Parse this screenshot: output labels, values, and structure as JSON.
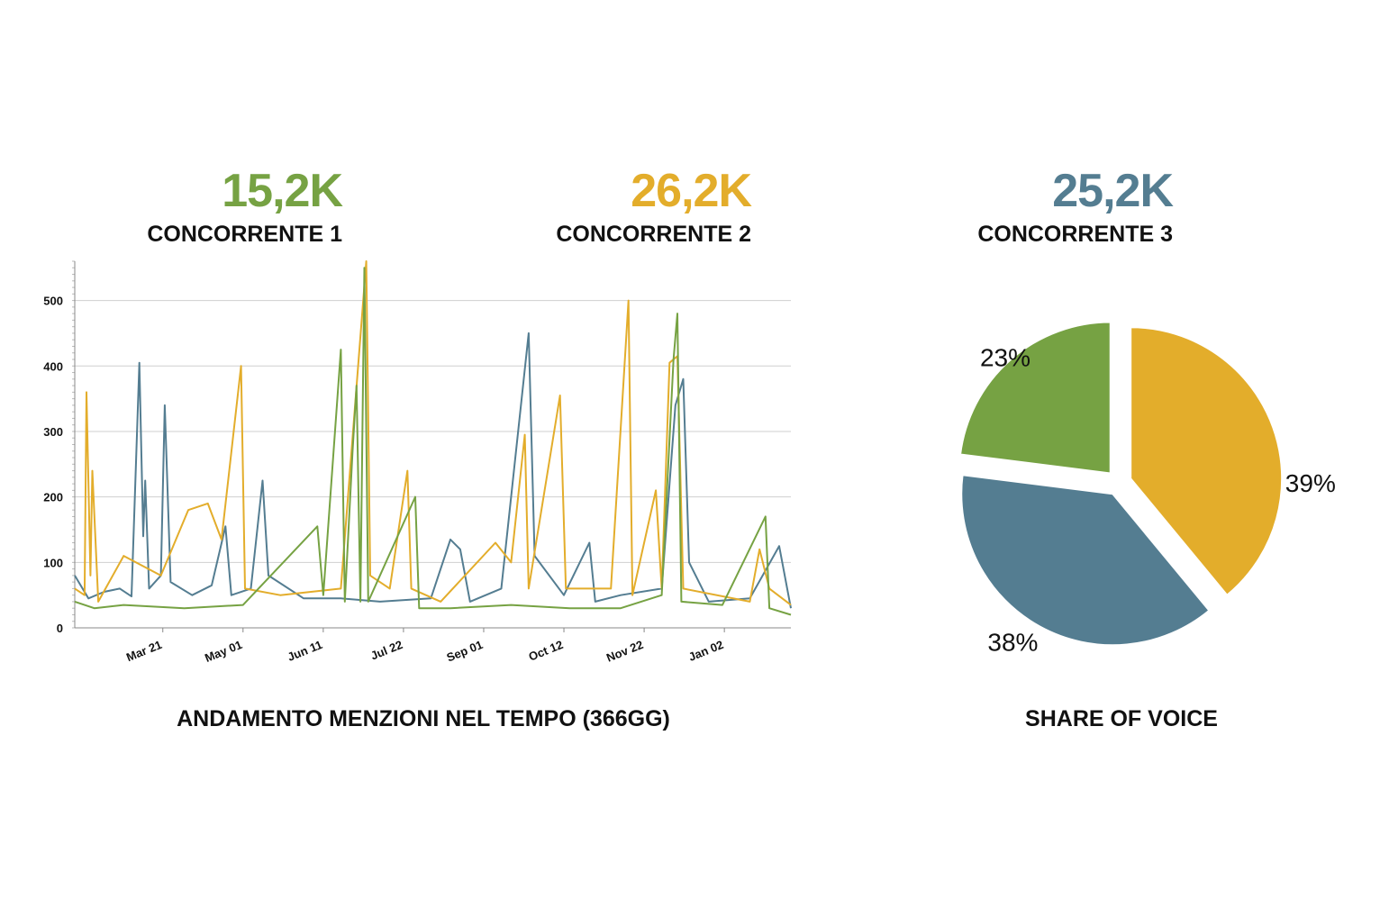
{
  "kpis": [
    {
      "value": "15,2K",
      "label": "CONCORRENTE 1",
      "color": "#76a243"
    },
    {
      "value": "26,2K",
      "label": "CONCORRENTE 2",
      "color": "#e3ad2b"
    },
    {
      "value": "25,2K",
      "label": "CONCORRENTE 3",
      "color": "#547d91"
    }
  ],
  "chart_data": [
    {
      "type": "line",
      "title": "ANDAMENTO MENZIONI NEL TEMPO (366GG)",
      "xlabel": "",
      "ylabel": "",
      "xlim": [
        "Feb 05",
        "Feb 05 (next year)"
      ],
      "ylim": [
        0,
        560
      ],
      "y_ticks": [
        0,
        100,
        200,
        300,
        400,
        500
      ],
      "x_tick_labels": [
        "Mar 21",
        "May 01",
        "Jun 11",
        "Jul 22",
        "Sep 01",
        "Oct 12",
        "Nov 22",
        "Jan 02"
      ],
      "grid": true,
      "legend": "none",
      "series": [
        {
          "color": "#547d91",
          "points": [
            [
              "Feb 05",
              80
            ],
            [
              "Feb 12",
              45
            ],
            [
              "Feb 20",
              55
            ],
            [
              "Feb 28",
              60
            ],
            [
              "Mar 05",
              48
            ],
            [
              "Mar 09",
              405
            ],
            [
              "Mar 11",
              140
            ],
            [
              "Mar 12",
              225
            ],
            [
              "Mar 14",
              60
            ],
            [
              "Mar 20",
              80
            ],
            [
              "Mar 22",
              340
            ],
            [
              "Mar 25",
              70
            ],
            [
              "Apr 05",
              50
            ],
            [
              "Apr 15",
              65
            ],
            [
              "Apr 22",
              155
            ],
            [
              "Apr 25",
              50
            ],
            [
              "May 05",
              60
            ],
            [
              "May 11",
              225
            ],
            [
              "May 14",
              80
            ],
            [
              "Jun 01",
              45
            ],
            [
              "Jun 20",
              45
            ],
            [
              "Jul 10",
              40
            ],
            [
              "Aug 05",
              45
            ],
            [
              "Aug 15",
              135
            ],
            [
              "Aug 20",
              120
            ],
            [
              "Aug 25",
              40
            ],
            [
              "Sep 10",
              60
            ],
            [
              "Sep 24",
              450
            ],
            [
              "Sep 27",
              110
            ],
            [
              "Oct 12",
              50
            ],
            [
              "Oct 25",
              130
            ],
            [
              "Oct 28",
              40
            ],
            [
              "Nov 10",
              50
            ],
            [
              "Dec 01",
              60
            ],
            [
              "Dec 08",
              340
            ],
            [
              "Dec 12",
              380
            ],
            [
              "Dec 15",
              100
            ],
            [
              "Dec 25",
              40
            ],
            [
              "Jan 15",
              45
            ],
            [
              "Jan 30",
              125
            ],
            [
              "Feb 05 (next year)",
              30
            ]
          ]
        },
        {
          "color": "#e3ad2b",
          "points": [
            [
              "Feb 05",
              60
            ],
            [
              "Feb 10",
              50
            ],
            [
              "Feb 11",
              360
            ],
            [
              "Feb 13",
              80
            ],
            [
              "Feb 14",
              240
            ],
            [
              "Feb 17",
              40
            ],
            [
              "Mar 01",
              110
            ],
            [
              "Mar 20",
              80
            ],
            [
              "Apr 03",
              180
            ],
            [
              "Apr 13",
              190
            ],
            [
              "Apr 20",
              135
            ],
            [
              "Apr 30",
              400
            ],
            [
              "May 02",
              60
            ],
            [
              "May 20",
              50
            ],
            [
              "Jun 20",
              60
            ],
            [
              "Jul 03",
              560
            ],
            [
              "Jul 05",
              80
            ],
            [
              "Jul 15",
              60
            ],
            [
              "Jul 24",
              240
            ],
            [
              "Jul 26",
              60
            ],
            [
              "Aug 10",
              40
            ],
            [
              "Sep 07",
              130
            ],
            [
              "Sep 15",
              100
            ],
            [
              "Sep 22",
              295
            ],
            [
              "Sep 24",
              60
            ],
            [
              "Oct 10",
              355
            ],
            [
              "Oct 13",
              60
            ],
            [
              "Nov 05",
              60
            ],
            [
              "Nov 14",
              500
            ],
            [
              "Nov 16",
              50
            ],
            [
              "Nov 28",
              210
            ],
            [
              "Dec 01",
              60
            ],
            [
              "Dec 05",
              405
            ],
            [
              "Dec 09",
              415
            ],
            [
              "Dec 12",
              60
            ],
            [
              "Jan 15",
              40
            ],
            [
              "Jan 20",
              120
            ],
            [
              "Jan 25",
              60
            ],
            [
              "Feb 05 (next year)",
              35
            ]
          ]
        },
        {
          "color": "#76a243",
          "points": [
            [
              "Feb 05",
              40
            ],
            [
              "Feb 15",
              30
            ],
            [
              "Mar 01",
              35
            ],
            [
              "Apr 01",
              30
            ],
            [
              "May 01",
              35
            ],
            [
              "Jun 08",
              155
            ],
            [
              "Jun 11",
              50
            ],
            [
              "Jun 20",
              425
            ],
            [
              "Jun 22",
              40
            ],
            [
              "Jun 26",
              270
            ],
            [
              "Jun 28",
              370
            ],
            [
              "Jun 30",
              40
            ],
            [
              "Jul 02",
              550
            ],
            [
              "Jul 04",
              40
            ],
            [
              "Jul 28",
              200
            ],
            [
              "Jul 30",
              30
            ],
            [
              "Aug 15",
              30
            ],
            [
              "Sep 15",
              35
            ],
            [
              "Oct 15",
              30
            ],
            [
              "Nov 10",
              30
            ],
            [
              "Dec 01",
              50
            ],
            [
              "Dec 07",
              410
            ],
            [
              "Dec 09",
              480
            ],
            [
              "Dec 11",
              40
            ],
            [
              "Jan 01",
              35
            ],
            [
              "Jan 23",
              170
            ],
            [
              "Jan 25",
              30
            ],
            [
              "Feb 05 (next year)",
              20
            ]
          ]
        }
      ]
    },
    {
      "type": "pie",
      "title": "SHARE OF VOICE",
      "slices": [
        {
          "label": "39%",
          "value": 39,
          "color": "#e3ad2b"
        },
        {
          "label": "38%",
          "value": 38,
          "color": "#547d91"
        },
        {
          "label": "23%",
          "value": 23,
          "color": "#76a243"
        }
      ]
    }
  ]
}
